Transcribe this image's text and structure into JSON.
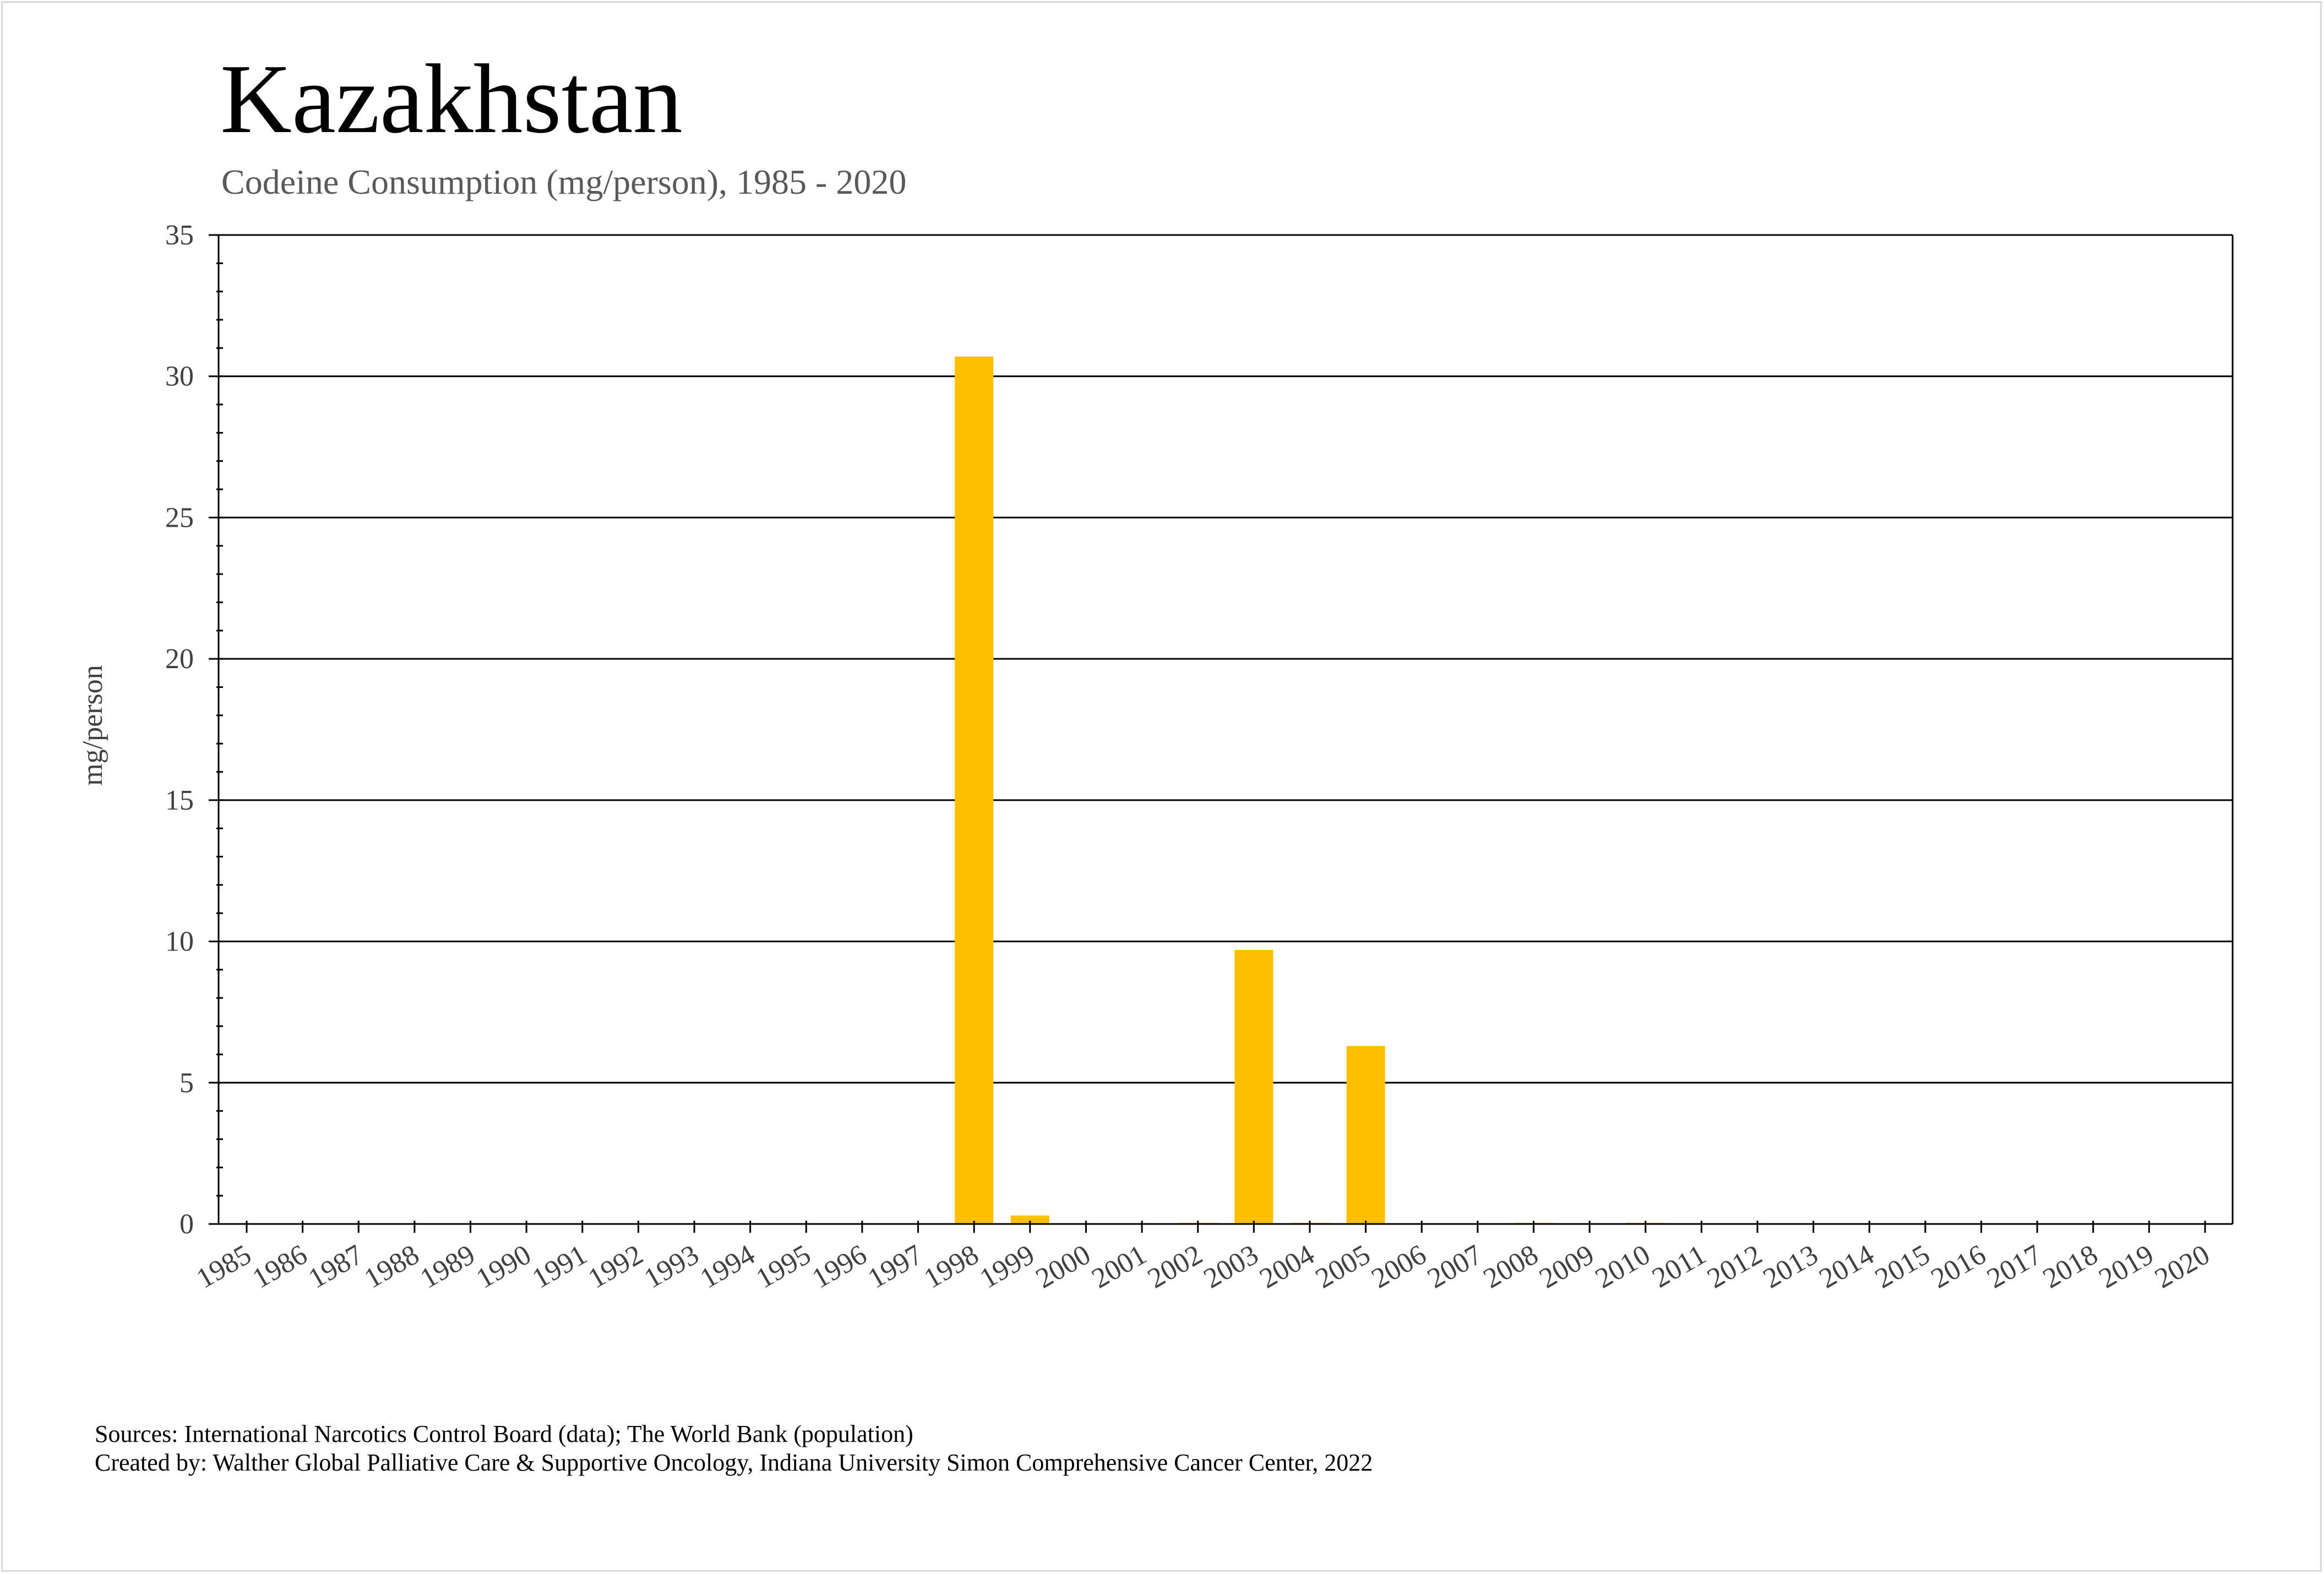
{
  "chart_data": {
    "type": "bar",
    "title": "Kazakhstan",
    "subtitle": "Codeine Consumption (mg/person), 1985 - 2020",
    "xlabel": "",
    "ylabel": "mg/person",
    "ylim": [
      0,
      35
    ],
    "yticks": [
      "0",
      "5",
      "10",
      "15",
      "20",
      "25",
      "30",
      "35"
    ],
    "grid": true,
    "bar_color": "#FDBF00",
    "categories": [
      "1985",
      "1986",
      "1987",
      "1988",
      "1989",
      "1990",
      "1991",
      "1992",
      "1993",
      "1994",
      "1995",
      "1996",
      "1997",
      "1998",
      "1999",
      "2000",
      "2001",
      "2002",
      "2003",
      "2004",
      "2005",
      "2006",
      "2007",
      "2008",
      "2009",
      "2010",
      "2011",
      "2012",
      "2013",
      "2014",
      "2015",
      "2016",
      "2017",
      "2018",
      "2019",
      "2020"
    ],
    "values": [
      0,
      0,
      0,
      0,
      0,
      0,
      0,
      0,
      0,
      0,
      0,
      0,
      0,
      30.7,
      0.3,
      0,
      0,
      0.02,
      9.7,
      0.02,
      6.3,
      0,
      0,
      0.03,
      0,
      0.03,
      0,
      0,
      0,
      0,
      0,
      0,
      0,
      0,
      0,
      0
    ]
  },
  "footer": {
    "sources": "Sources: International Narcotics Control Board (data); The World Bank (population)",
    "created_by": "Created by: Walther Global Palliative Care & Supportive Oncology, Indiana University Simon Comprehensive Cancer Center, 2022"
  }
}
